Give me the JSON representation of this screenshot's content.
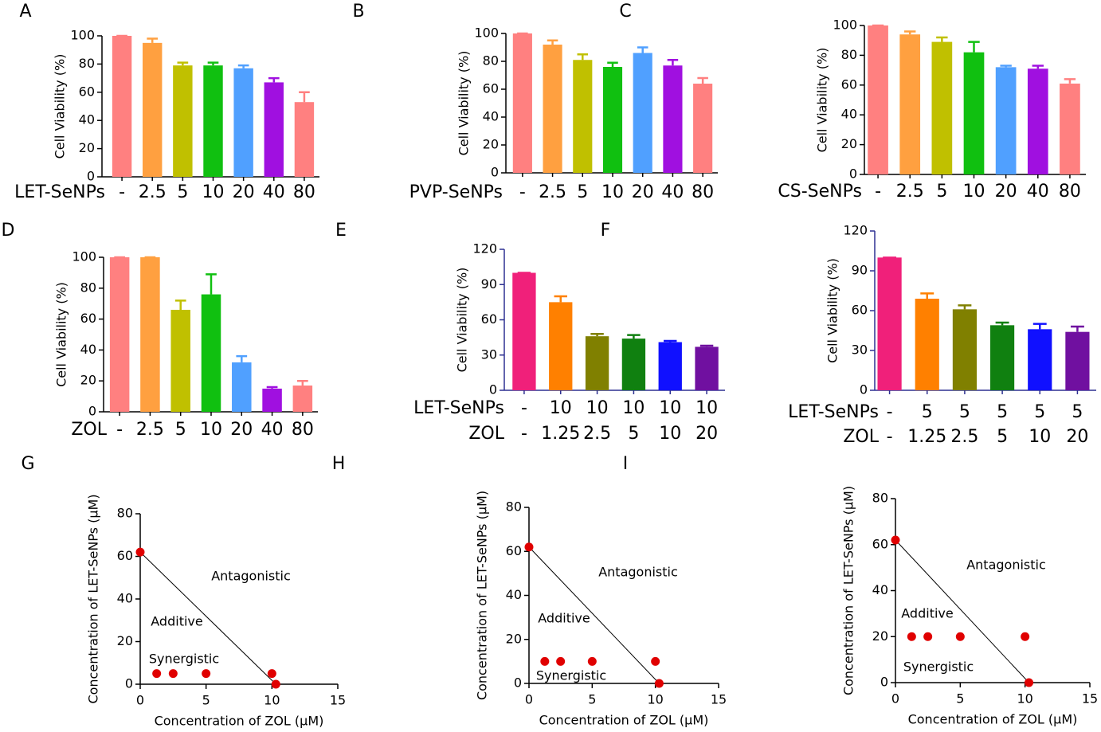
{
  "chart_data": [
    {
      "panel": "A",
      "type": "bar",
      "y_label": "Cell Viability (%)",
      "axis_color": "#000000",
      "category_rows": [
        {
          "name": "LET-SeNPs",
          "labels": [
            "-",
            "2.5",
            "5",
            "10",
            "20",
            "40",
            "80"
          ]
        }
      ],
      "values": [
        100,
        95,
        79,
        79,
        77,
        67,
        53
      ],
      "errors": [
        0,
        3,
        2,
        2,
        2,
        3,
        7
      ],
      "colors": [
        "#ff8080",
        "#ffa040",
        "#c0c000",
        "#10c010",
        "#50a0ff",
        "#a010e0",
        "#ff8080"
      ],
      "ylim": [
        0,
        100
      ],
      "yticks": [
        0,
        20,
        40,
        60,
        80,
        100
      ]
    },
    {
      "panel": "B",
      "type": "bar",
      "y_label": "Cell Viability (%)",
      "axis_color": "#000000",
      "category_rows": [
        {
          "name": "PVP-SeNPs",
          "labels": [
            "-",
            "2.5",
            "5",
            "10",
            "20",
            "40",
            "80"
          ]
        }
      ],
      "values": [
        100,
        92,
        81,
        76,
        86,
        77,
        64
      ],
      "errors": [
        0,
        3,
        4,
        3,
        4,
        4,
        4
      ],
      "colors": [
        "#ff8080",
        "#ffa040",
        "#c0c000",
        "#10c010",
        "#50a0ff",
        "#a010e0",
        "#ff8080"
      ],
      "ylim": [
        0,
        100
      ],
      "yticks": [
        0,
        20,
        40,
        60,
        80,
        100
      ]
    },
    {
      "panel": "C",
      "type": "bar",
      "y_label": "Cell Viability (%)",
      "axis_color": "#000000",
      "category_rows": [
        {
          "name": "CS-SeNPs",
          "labels": [
            "-",
            "2.5",
            "5",
            "10",
            "20",
            "40",
            "80"
          ]
        }
      ],
      "values": [
        100,
        94,
        89,
        82,
        72,
        71,
        61
      ],
      "errors": [
        0,
        2,
        3,
        7,
        1,
        2,
        3
      ],
      "colors": [
        "#ff8080",
        "#ffa040",
        "#c0c000",
        "#10c010",
        "#50a0ff",
        "#a010e0",
        "#ff8080"
      ],
      "ylim": [
        0,
        100
      ],
      "yticks": [
        0,
        20,
        40,
        60,
        80,
        100
      ]
    },
    {
      "panel": "D",
      "type": "bar",
      "y_label": "Cell Viability (%)",
      "axis_color": "#000000",
      "category_rows": [
        {
          "name": "ZOL",
          "labels": [
            "-",
            "2.5",
            "5",
            "10",
            "20",
            "40",
            "80"
          ]
        }
      ],
      "values": [
        100,
        100,
        66,
        76,
        32,
        15,
        17
      ],
      "errors": [
        0,
        0,
        6,
        13,
        4,
        1,
        3
      ],
      "colors": [
        "#ff8080",
        "#ffa040",
        "#c0c000",
        "#10c010",
        "#50a0ff",
        "#a010e0",
        "#ff8080"
      ],
      "ylim": [
        0,
        100
      ],
      "yticks": [
        0,
        20,
        40,
        60,
        80,
        100
      ]
    },
    {
      "panel": "E",
      "type": "bar",
      "y_label": "Cell Viability (%)",
      "axis_color": "#2e3192",
      "category_rows": [
        {
          "name": "LET-SeNPs",
          "labels": [
            "-",
            "10",
            "10",
            "10",
            "10",
            "10"
          ]
        },
        {
          "name": "ZOL",
          "labels": [
            "-",
            "1.25",
            "2.5",
            "5",
            "10",
            "20"
          ]
        }
      ],
      "values": [
        100,
        75,
        46,
        44,
        41,
        37
      ],
      "errors": [
        0,
        5,
        2,
        3,
        1,
        1
      ],
      "colors": [
        "#f0207a",
        "#ff8000",
        "#808000",
        "#108010",
        "#1010ff",
        "#7010a0"
      ],
      "ylim": [
        0,
        120
      ],
      "yticks": [
        0,
        30,
        60,
        90,
        120
      ]
    },
    {
      "panel": "F",
      "type": "bar",
      "y_label": "Cell Viability (%)",
      "axis_color": "#2e3192",
      "category_rows": [
        {
          "name": "LET-SeNPs",
          "labels": [
            "-",
            "5",
            "5",
            "5",
            "5",
            "5"
          ]
        },
        {
          "name": "ZOL",
          "labels": [
            "-",
            "1.25",
            "2.5",
            "5",
            "10",
            "20"
          ]
        }
      ],
      "values": [
        100,
        69,
        61,
        49,
        46,
        44
      ],
      "errors": [
        0,
        4,
        3,
        2,
        4,
        4
      ],
      "colors": [
        "#f0207a",
        "#ff8000",
        "#808000",
        "#108010",
        "#1010ff",
        "#7010a0"
      ],
      "ylim": [
        0,
        120
      ],
      "yticks": [
        0,
        30,
        60,
        90,
        120
      ]
    },
    {
      "panel": "G",
      "type": "scatter",
      "x_label": "Concentration of ZOL (μM)",
      "y_label": "Concentration of LET-SeNPs (μM)",
      "axis_color": "#000000",
      "x": [
        0,
        1.25,
        2.5,
        5,
        10,
        10.3
      ],
      "values": [
        62,
        5,
        5,
        5,
        5,
        0
      ],
      "color": "#e00000",
      "line": {
        "x": [
          0,
          10.3
        ],
        "y": [
          62,
          0
        ],
        "color": "#000000"
      },
      "annotations": [
        "Antagonistic",
        "Additive",
        "Synergistic"
      ],
      "xlim": [
        0,
        15
      ],
      "xticks": [
        0,
        5,
        10,
        15
      ],
      "ylim": [
        0,
        80
      ],
      "yticks": [
        0,
        20,
        40,
        60,
        80
      ]
    },
    {
      "panel": "H",
      "type": "scatter",
      "x_label": "Concentration of ZOL (μM)",
      "y_label": "Concentration of LET-SeNPs (μM)",
      "axis_color": "#000000",
      "x": [
        0,
        1.25,
        2.5,
        5,
        10,
        10.3
      ],
      "values": [
        62,
        10,
        10,
        10,
        10,
        0
      ],
      "color": "#e00000",
      "line": {
        "x": [
          0,
          10.3
        ],
        "y": [
          62,
          0
        ],
        "color": "#000000"
      },
      "annotations": [
        "Antagonistic",
        "Additive",
        "Synergistic"
      ],
      "xlim": [
        0,
        15
      ],
      "xticks": [
        0,
        5,
        10,
        15
      ],
      "ylim": [
        0,
        80
      ],
      "yticks": [
        0,
        20,
        40,
        60,
        80
      ]
    },
    {
      "panel": "I",
      "type": "scatter",
      "x_label": "Concentration of ZOL (μM)",
      "y_label": "Concentration of LET-SeNPs (μM)",
      "axis_color": "#000000",
      "x": [
        0,
        1.25,
        2.5,
        5,
        10,
        10.3
      ],
      "values": [
        62,
        20,
        20,
        20,
        20,
        0
      ],
      "color": "#e00000",
      "line": {
        "x": [
          0,
          10.3
        ],
        "y": [
          62,
          0
        ],
        "color": "#000000"
      },
      "annotations": [
        "Antagonistic",
        "Additive",
        "Synergistic"
      ],
      "xlim": [
        0,
        15
      ],
      "xticks": [
        0,
        5,
        10,
        15
      ],
      "ylim": [
        0,
        80
      ],
      "yticks": [
        0,
        20,
        40,
        60,
        80
      ]
    }
  ]
}
